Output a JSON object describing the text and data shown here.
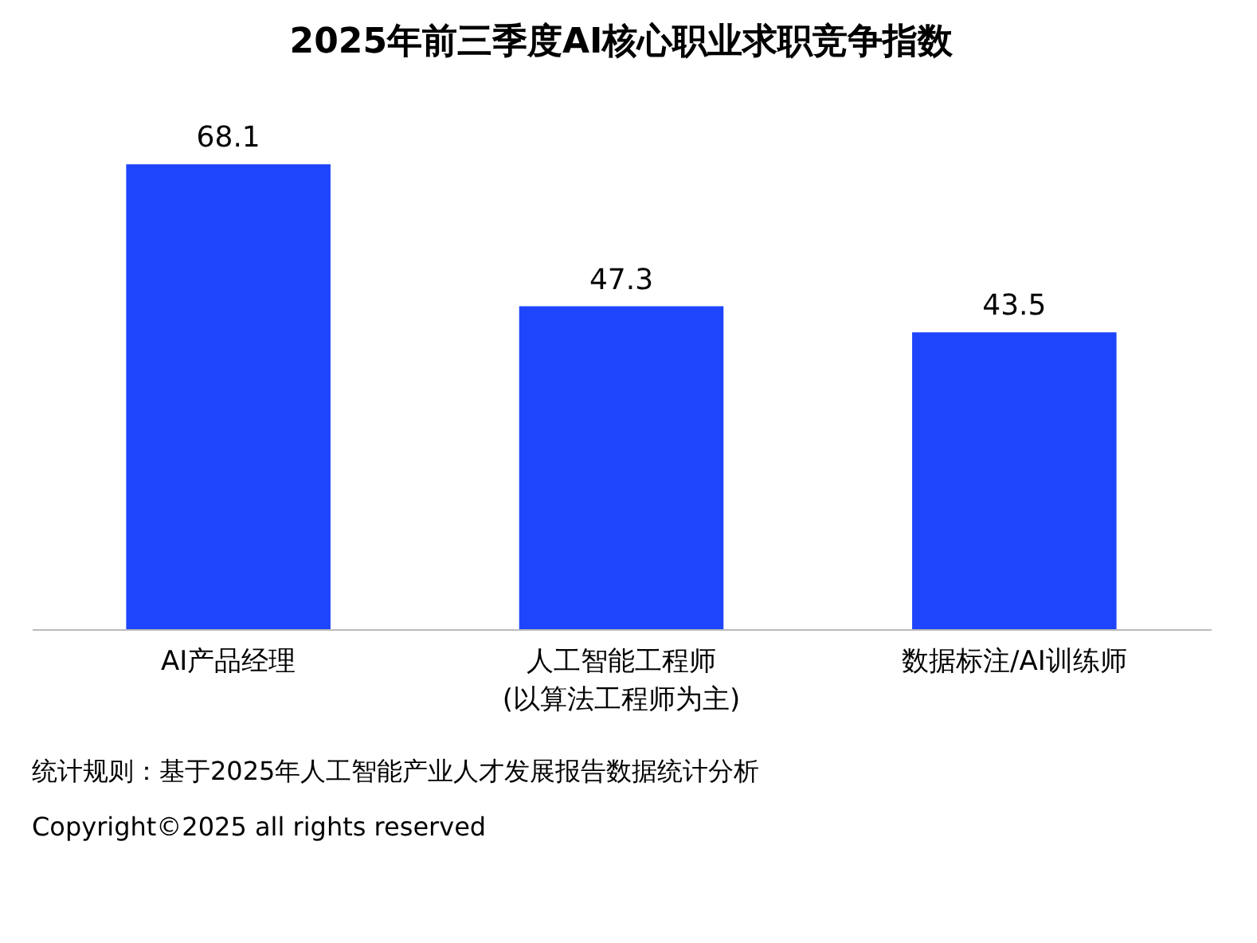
{
  "chart_data": {
    "type": "bar",
    "title": "2025年前三季度AI核心职业求职竞争指数",
    "categories": [
      "AI产品经理",
      "人工智能工程师\n(以算法工程师为主)",
      "数据标注/AI训练师"
    ],
    "values": [
      68.1,
      47.3,
      43.5
    ],
    "color": "#1f45fc",
    "data_labels": true,
    "grid": false,
    "annotations": [
      "统计规则：基于2025年人工智能产业人才发展报告数据统计分析",
      "Copyright©2025 all rights reserved"
    ]
  }
}
